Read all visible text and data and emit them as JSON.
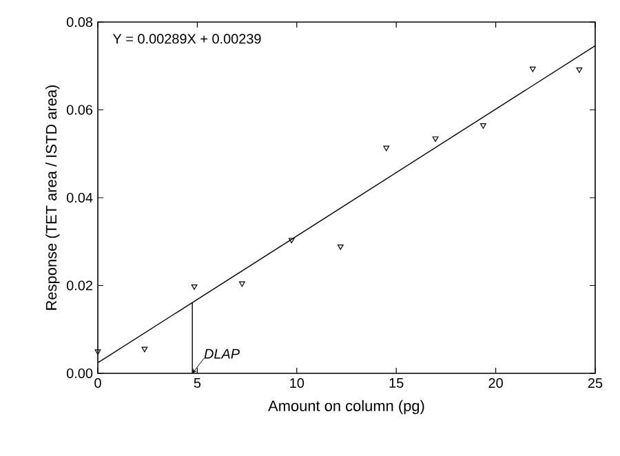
{
  "chart_data": {
    "type": "scatter",
    "xlabel": "Amount on column (pg)",
    "ylabel": "Response (TET area / ISTD area)",
    "series": [
      {
        "marker": "triangle",
        "color": "#000000",
        "x": [
          0,
          2.35,
          4.85,
          7.25,
          9.74,
          12.2,
          14.5,
          16.97,
          19.37,
          21.86,
          24.2
        ],
        "values": [
          0.005,
          0.0056,
          0.0198,
          0.0205,
          0.0304,
          0.0289,
          0.0514,
          0.0535,
          0.0565,
          0.0694,
          0.0692
        ]
      },
      {
        "type": "line",
        "marker": "none",
        "color": "#000000",
        "x": [
          0,
          25
        ],
        "values": [
          0.0024,
          0.0746
        ]
      },
      {
        "type": "line",
        "marker": "none",
        "color": "#000000",
        "x": [
          4.75,
          4.75
        ],
        "values": [
          0,
          0.0161
        ]
      }
    ],
    "annotations": [
      "Y = 0.00289X + 0.00239",
      {
        "text": "DLAP",
        "x": 4.75,
        "y": 0
      }
    ],
    "xlim": [
      0,
      25
    ],
    "xticks": [
      0,
      5,
      10,
      15,
      20,
      25
    ],
    "ylim": [
      0,
      0.08
    ],
    "yticks": [
      {
        "value": 0,
        "label": "0.00"
      },
      {
        "value": 0.02,
        "label": "0.02"
      },
      {
        "value": 0.04,
        "label": "0.04"
      },
      {
        "value": 0.06,
        "label": "0.06"
      },
      {
        "value": 0.08,
        "label": "0.08"
      }
    ],
    "grid": false
  }
}
